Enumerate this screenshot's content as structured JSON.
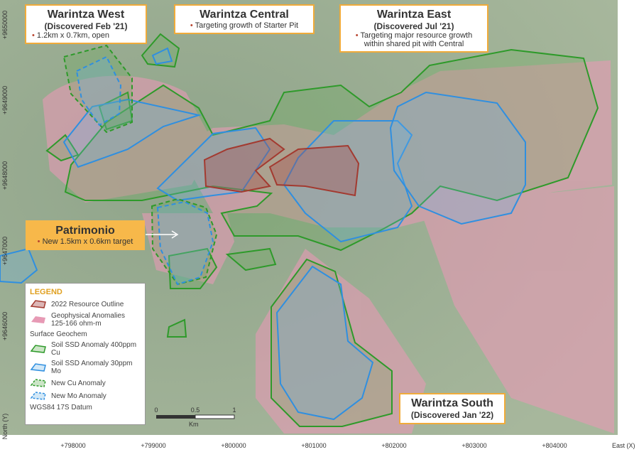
{
  "callouts": {
    "west": {
      "title": "Warintza West",
      "subtitle": "(Discovered Feb '21)",
      "bullet": "1.2km x 0.7km, open"
    },
    "central": {
      "title": "Warintza Central",
      "bullet": "Targeting growth of Starter Pit"
    },
    "east": {
      "title": "Warintza East",
      "subtitle": "(Discovered Jul '21)",
      "bullet": "Targeting major resource growth within shared pit with Central"
    },
    "patrimonio": {
      "title": "Patrimonio",
      "bullet": "New 1.5km x 0.6km target"
    },
    "south": {
      "title": "Warintza South",
      "subtitle": "(Discovered Jan '22)"
    }
  },
  "legend": {
    "title": "LEGEND",
    "items": [
      "2022 Resource Outline",
      "Geophysical Anomalies 125-166 ohm-m"
    ],
    "section": "Surface Geochem",
    "geochem": [
      "Soil SSD Anomaly 400ppm Cu",
      "Soil SSD Anomaly 30ppm Mo",
      "New Cu Anomaly",
      "New Mo Anomaly"
    ],
    "datum": "WGS84 17S Datum"
  },
  "scale_bar": {
    "labels": [
      "0",
      "0.5",
      "1"
    ],
    "unit": "Km"
  },
  "axes": {
    "x_title": "East (X)",
    "x_labels": [
      "+798000",
      "+799000",
      "+800000",
      "+801000",
      "+802000",
      "+803000",
      "+804000"
    ],
    "y_title": "North (Y)",
    "y_labels": [
      "+9650000",
      "+9649000",
      "+9648000",
      "+9647000",
      "+9646000"
    ]
  }
}
